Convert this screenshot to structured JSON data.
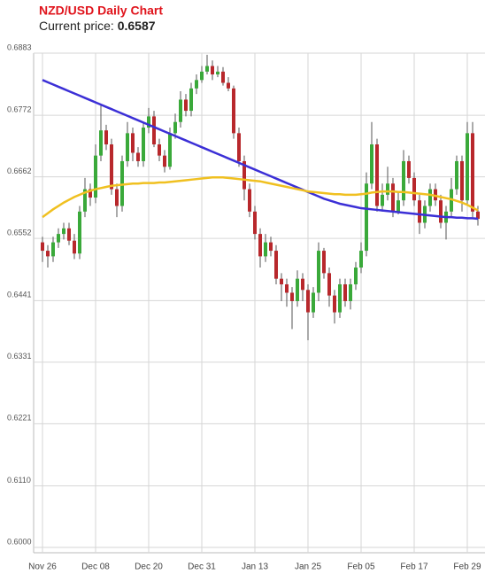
{
  "chart_data": {
    "type": "candlestick",
    "title": "NZD/USD Daily Chart",
    "current_price_label": "Current price:",
    "current_price": 0.6587,
    "categories": [
      "Nov 26",
      null,
      null,
      null,
      null,
      null,
      null,
      null,
      null,
      null,
      "Dec 08",
      null,
      null,
      null,
      null,
      null,
      null,
      null,
      null,
      null,
      "Dec 20",
      null,
      null,
      null,
      null,
      null,
      null,
      null,
      null,
      null,
      "Dec 31",
      null,
      null,
      null,
      null,
      null,
      null,
      null,
      null,
      null,
      "Jan 13",
      null,
      null,
      null,
      null,
      null,
      null,
      null,
      null,
      null,
      "Jan 25",
      null,
      null,
      null,
      null,
      null,
      null,
      null,
      null,
      null,
      "Feb 05",
      null,
      null,
      null,
      null,
      null,
      null,
      null,
      null,
      null,
      "Feb 17",
      null,
      null,
      null,
      null,
      null,
      null,
      null,
      null,
      null,
      "Feb 29",
      null,
      null
    ],
    "open": [
      0.6545,
      0.653,
      0.652,
      0.6545,
      0.656,
      0.657,
      0.6548,
      0.6525,
      0.66,
      0.664,
      0.6625,
      0.67,
      0.6745,
      0.672,
      0.664,
      0.661,
      0.669,
      0.674,
      0.6705,
      0.669,
      0.675,
      0.677,
      0.672,
      0.67,
      0.668,
      0.674,
      0.676,
      0.68,
      0.678,
      0.682,
      0.6835,
      0.685,
      0.686,
      0.6845,
      0.685,
      0.683,
      0.682,
      0.674,
      0.669,
      0.664,
      0.66,
      0.656,
      0.652,
      0.6545,
      0.653,
      0.648,
      0.647,
      0.6455,
      0.644,
      0.648,
      0.646,
      0.642,
      0.6455,
      0.653,
      0.649,
      0.645,
      0.642,
      0.647,
      0.644,
      0.647,
      0.65,
      0.653,
      0.665,
      0.672,
      0.661,
      0.663,
      0.665,
      0.66,
      0.662,
      0.669,
      0.666,
      0.662,
      0.658,
      0.661,
      0.664,
      0.662,
      0.658,
      0.66,
      0.664,
      0.669,
      0.662,
      0.674,
      0.66
    ],
    "high": [
      0.6555,
      0.654,
      0.6555,
      0.657,
      0.658,
      0.658,
      0.656,
      0.661,
      0.666,
      0.665,
      0.672,
      0.679,
      0.6755,
      0.673,
      0.665,
      0.67,
      0.676,
      0.675,
      0.6715,
      0.676,
      0.6785,
      0.678,
      0.673,
      0.671,
      0.675,
      0.6775,
      0.6815,
      0.681,
      0.683,
      0.6845,
      0.686,
      0.688,
      0.687,
      0.686,
      0.6858,
      0.684,
      0.6825,
      0.675,
      0.67,
      0.665,
      0.661,
      0.657,
      0.656,
      0.6555,
      0.654,
      0.649,
      0.648,
      0.6465,
      0.6495,
      0.649,
      0.647,
      0.6465,
      0.6545,
      0.6535,
      0.65,
      0.646,
      0.648,
      0.648,
      0.648,
      0.651,
      0.6545,
      0.667,
      0.676,
      0.673,
      0.665,
      0.668,
      0.666,
      0.6635,
      0.671,
      0.67,
      0.667,
      0.663,
      0.662,
      0.665,
      0.665,
      0.663,
      0.661,
      0.666,
      0.67,
      0.67,
      0.676,
      0.676,
      0.661
    ],
    "low": [
      0.651,
      0.65,
      0.651,
      0.6535,
      0.655,
      0.654,
      0.6515,
      0.6515,
      0.659,
      0.661,
      0.6615,
      0.669,
      0.671,
      0.663,
      0.659,
      0.66,
      0.668,
      0.669,
      0.668,
      0.668,
      0.674,
      0.6715,
      0.669,
      0.667,
      0.6675,
      0.673,
      0.675,
      0.677,
      0.677,
      0.681,
      0.683,
      0.6845,
      0.6835,
      0.684,
      0.6825,
      0.6815,
      0.673,
      0.668,
      0.662,
      0.659,
      0.655,
      0.65,
      0.651,
      0.652,
      0.647,
      0.644,
      0.643,
      0.639,
      0.643,
      0.644,
      0.637,
      0.641,
      0.644,
      0.648,
      0.643,
      0.64,
      0.641,
      0.643,
      0.6425,
      0.646,
      0.649,
      0.652,
      0.664,
      0.66,
      0.66,
      0.662,
      0.659,
      0.6595,
      0.661,
      0.665,
      0.661,
      0.656,
      0.657,
      0.66,
      0.661,
      0.657,
      0.655,
      0.659,
      0.663,
      0.66,
      0.661,
      0.659,
      0.6575
    ],
    "close": [
      0.653,
      0.652,
      0.6545,
      0.656,
      0.657,
      0.6548,
      0.6525,
      0.66,
      0.664,
      0.6625,
      0.67,
      0.6745,
      0.672,
      0.664,
      0.661,
      0.669,
      0.674,
      0.6705,
      0.669,
      0.675,
      0.677,
      0.672,
      0.67,
      0.668,
      0.674,
      0.676,
      0.68,
      0.678,
      0.682,
      0.6835,
      0.685,
      0.686,
      0.6845,
      0.685,
      0.683,
      0.682,
      0.674,
      0.669,
      0.664,
      0.66,
      0.656,
      0.652,
      0.6545,
      0.653,
      0.648,
      0.647,
      0.6455,
      0.644,
      0.648,
      0.646,
      0.642,
      0.6455,
      0.653,
      0.649,
      0.645,
      0.642,
      0.647,
      0.644,
      0.647,
      0.65,
      0.653,
      0.665,
      0.672,
      0.661,
      0.663,
      0.665,
      0.66,
      0.662,
      0.669,
      0.666,
      0.662,
      0.658,
      0.661,
      0.664,
      0.662,
      0.658,
      0.66,
      0.664,
      0.669,
      0.662,
      0.674,
      0.66,
      0.6587
    ],
    "up_color": "#3aa93a",
    "down_color": "#b8282c",
    "series": [
      {
        "color": "#3b2fd6",
        "values": [
          0.6835,
          0.6831,
          0.6827,
          0.6823,
          0.6819,
          0.6815,
          0.6811,
          0.6807,
          0.6803,
          0.6799,
          0.6795,
          0.6791,
          0.6787,
          0.6783,
          0.6779,
          0.6775,
          0.6771,
          0.6767,
          0.6763,
          0.6759,
          0.6755,
          0.6751,
          0.6747,
          0.6743,
          0.6739,
          0.6735,
          0.6731,
          0.6727,
          0.6723,
          0.6719,
          0.6715,
          0.6711,
          0.6707,
          0.6703,
          0.6699,
          0.6695,
          0.6691,
          0.6687,
          0.6683,
          0.6679,
          0.6675,
          0.6671,
          0.6667,
          0.6663,
          0.6659,
          0.6655,
          0.6651,
          0.6647,
          0.6643,
          0.6639,
          0.6635,
          0.6631,
          0.6627,
          0.6623,
          0.662,
          0.6617,
          0.6614,
          0.6612,
          0.661,
          0.6608,
          0.6606,
          0.6605,
          0.6604,
          0.6603,
          0.6602,
          0.6601,
          0.66,
          0.6599,
          0.6598,
          0.6597,
          0.6596,
          0.6595,
          0.6594,
          0.6593,
          0.6592,
          0.6591,
          0.659,
          0.659,
          0.6589,
          0.6589,
          0.6588,
          0.6588,
          0.6587
        ]
      },
      {
        "color": "#f0c020",
        "values": [
          0.659,
          0.6597,
          0.6604,
          0.661,
          0.6616,
          0.6621,
          0.6626,
          0.663,
          0.6634,
          0.6637,
          0.664,
          0.6642,
          0.6644,
          0.6646,
          0.6647,
          0.6648,
          0.6649,
          0.665,
          0.665,
          0.6651,
          0.6651,
          0.6651,
          0.6652,
          0.6652,
          0.6653,
          0.6654,
          0.6655,
          0.6656,
          0.6657,
          0.6658,
          0.6659,
          0.666,
          0.6661,
          0.6661,
          0.6661,
          0.666,
          0.6659,
          0.6658,
          0.6657,
          0.6656,
          0.6655,
          0.6654,
          0.6652,
          0.665,
          0.6648,
          0.6646,
          0.6644,
          0.6642,
          0.664,
          0.6638,
          0.6636,
          0.6635,
          0.6634,
          0.6633,
          0.6632,
          0.6631,
          0.6631,
          0.663,
          0.663,
          0.663,
          0.6631,
          0.6632,
          0.6634,
          0.6635,
          0.6636,
          0.6636,
          0.6636,
          0.6635,
          0.6635,
          0.6634,
          0.6633,
          0.6632,
          0.6631,
          0.663,
          0.6628,
          0.6626,
          0.6624,
          0.6622,
          0.6619,
          0.6616,
          0.6612,
          0.6607,
          0.6602
        ]
      }
    ],
    "ylim": [
      0.6,
      0.6883
    ],
    "yticks": [
      {
        "value": 0.6,
        "label": "0.6000"
      },
      {
        "value": 0.611,
        "label": "0.6110"
      },
      0.6221,
      0.6331,
      0.6441,
      0.6552,
      0.6662,
      0.6772,
      0.6883
    ],
    "grid": true
  }
}
